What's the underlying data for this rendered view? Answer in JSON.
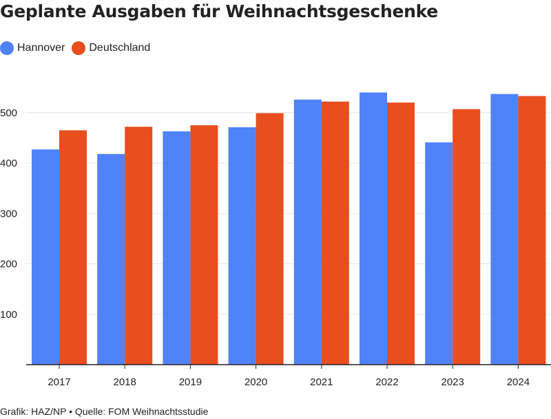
{
  "title": "Geplante Ausgaben für Weihnachtsgeschenke",
  "legend": [
    {
      "name": "Hannover",
      "color": "#5082fa"
    },
    {
      "name": "Deutschland",
      "color": "#e84e1e"
    }
  ],
  "footer": "Grafik: HAZ/NP • Quelle: FOM Weihnachtsstudie",
  "chart_data": {
    "type": "bar",
    "title": "Geplante Ausgaben für Weihnachtsgeschenke",
    "categories": [
      "2017",
      "2018",
      "2019",
      "2020",
      "2021",
      "2022",
      "2023",
      "2024"
    ],
    "series": [
      {
        "name": "Hannover",
        "color": "#5082fa",
        "values": [
          427,
          418,
          463,
          471,
          526,
          540,
          441,
          537
        ]
      },
      {
        "name": "Deutschland",
        "color": "#e84e1e",
        "values": [
          465,
          472,
          475,
          499,
          522,
          520,
          507,
          533
        ]
      }
    ],
    "yticks": [
      100,
      200,
      300,
      400,
      500
    ],
    "ylim": [
      0,
      560
    ],
    "grid": true,
    "legend_position": "top-left",
    "xlabel": "",
    "ylabel": ""
  }
}
